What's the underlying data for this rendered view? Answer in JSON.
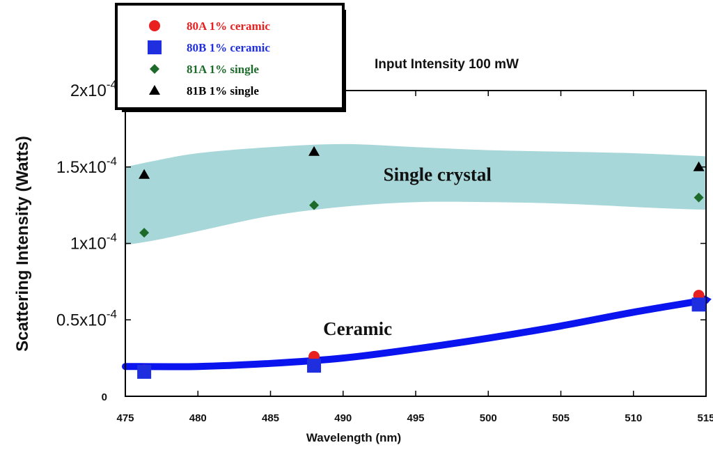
{
  "chart_data": {
    "type": "scatter",
    "title": "Input Intensity 100 mW",
    "xlabel": "Wavelength (nm)",
    "ylabel": "Scattering Intensity (Watts)",
    "xlim": [
      475,
      515
    ],
    "ylim": [
      0,
      0.0002
    ],
    "x_ticks": [
      475,
      480,
      485,
      490,
      495,
      500,
      505,
      510,
      515
    ],
    "y_ticks": [
      {
        "value": 0,
        "base": "0",
        "exp": ""
      },
      {
        "value": 5e-05,
        "base": "0.5x10",
        "exp": "-4"
      },
      {
        "value": 0.0001,
        "base": "1x10",
        "exp": "-4"
      },
      {
        "value": 0.00015,
        "base": "1.5x10",
        "exp": "-4"
      },
      {
        "value": 0.0002,
        "base": "2x10",
        "exp": "-4"
      }
    ],
    "grid": false,
    "legend_position": "top-left",
    "series": [
      {
        "name": "80A 1% ceramic",
        "marker": "circle",
        "color": "#e8201f",
        "points": [
          {
            "x": 476.3,
            "y": 1.7e-05
          },
          {
            "x": 488.0,
            "y": 2.6e-05
          },
          {
            "x": 514.5,
            "y": 6.6e-05
          }
        ]
      },
      {
        "name": "80B 1% ceramic",
        "marker": "square",
        "color": "#1f2fe0",
        "points": [
          {
            "x": 476.3,
            "y": 1.6e-05
          },
          {
            "x": 488.0,
            "y": 2e-05
          },
          {
            "x": 514.5,
            "y": 6e-05
          }
        ]
      },
      {
        "name": "81A 1% single",
        "marker": "diamond",
        "color": "#1d6b2a",
        "points": [
          {
            "x": 476.3,
            "y": 0.000107
          },
          {
            "x": 488.0,
            "y": 0.000125
          },
          {
            "x": 514.5,
            "y": 0.00013
          }
        ]
      },
      {
        "name": "81B 1% single",
        "marker": "triangle",
        "color": "#000000",
        "points": [
          {
            "x": 476.3,
            "y": 0.000145
          },
          {
            "x": 488.0,
            "y": 0.00016
          },
          {
            "x": 514.5,
            "y": 0.00015
          }
        ]
      }
    ],
    "ceramic_trend": [
      {
        "x": 475.0,
        "y": 1.95e-05
      },
      {
        "x": 480.0,
        "y": 1.95e-05
      },
      {
        "x": 485.0,
        "y": 2.15e-05
      },
      {
        "x": 490.0,
        "y": 2.5e-05
      },
      {
        "x": 495.0,
        "y": 3.1e-05
      },
      {
        "x": 500.0,
        "y": 3.8e-05
      },
      {
        "x": 505.0,
        "y": 4.6e-05
      },
      {
        "x": 510.0,
        "y": 5.5e-05
      },
      {
        "x": 515.0,
        "y": 6.3e-05
      }
    ],
    "single_crystal_band": {
      "upper": [
        {
          "x": 475.0,
          "y": 0.00015
        },
        {
          "x": 477.0,
          "y": 0.000154
        },
        {
          "x": 480.0,
          "y": 0.000159
        },
        {
          "x": 485.0,
          "y": 0.000163
        },
        {
          "x": 490.0,
          "y": 0.000165
        },
        {
          "x": 495.0,
          "y": 0.000163
        },
        {
          "x": 500.0,
          "y": 0.000161
        },
        {
          "x": 505.0,
          "y": 0.00016
        },
        {
          "x": 510.0,
          "y": 0.000159
        },
        {
          "x": 515.0,
          "y": 0.000157
        }
      ],
      "lower": [
        {
          "x": 515.0,
          "y": 0.000122
        },
        {
          "x": 512.0,
          "y": 0.000123
        },
        {
          "x": 505.0,
          "y": 0.000126
        },
        {
          "x": 500.0,
          "y": 0.000127
        },
        {
          "x": 495.0,
          "y": 0.000127
        },
        {
          "x": 490.0,
          "y": 0.000124
        },
        {
          "x": 485.0,
          "y": 0.000118
        },
        {
          "x": 480.0,
          "y": 0.000108
        },
        {
          "x": 477.0,
          "y": 0.000102
        },
        {
          "x": 475.0,
          "y": 9.9e-05
        }
      ]
    },
    "annotations": [
      {
        "text": "Single crystal",
        "x": 496.5,
        "y": 0.000141
      },
      {
        "text": "Ceramic",
        "x": 491.0,
        "y": 4e-05
      }
    ],
    "colors": {
      "band": "#a8d7d9",
      "trend": "#0a14ee",
      "axis": "#000000"
    }
  }
}
